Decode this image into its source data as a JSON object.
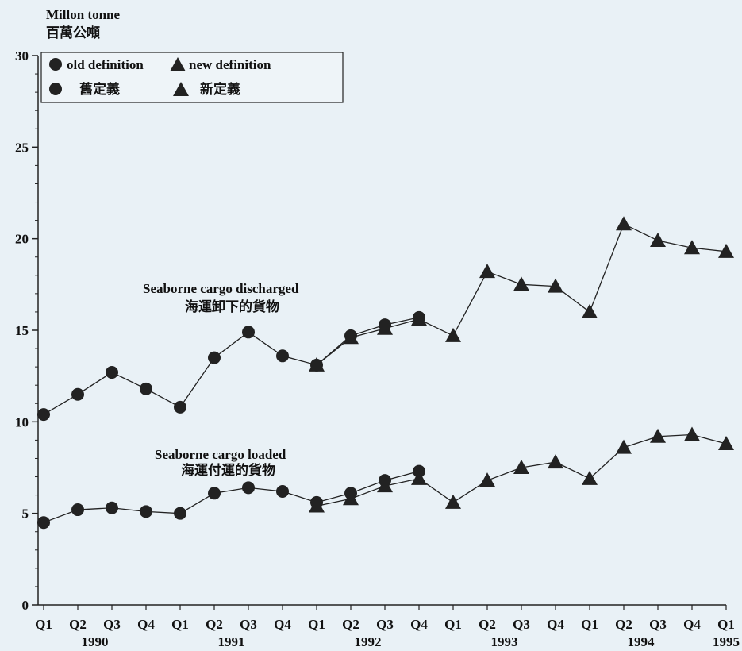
{
  "chart_data": {
    "type": "line",
    "ylabel": "Millon tonne",
    "ylabel_zh": "百萬公噸",
    "ylim": [
      0,
      30
    ],
    "yticks": [
      0,
      5,
      10,
      15,
      20,
      25,
      30
    ],
    "grid": false,
    "legend_position": "top-left",
    "legend": {
      "old": {
        "en": "old definition",
        "zh": "舊定義"
      },
      "new": {
        "en": "new definition",
        "zh": "新定義"
      }
    },
    "categories": [
      "Q1",
      "Q2",
      "Q3",
      "Q4",
      "Q1",
      "Q2",
      "Q3",
      "Q4",
      "Q1",
      "Q2",
      "Q3",
      "Q4",
      "Q1",
      "Q2",
      "Q3",
      "Q4",
      "Q1",
      "Q2",
      "Q3",
      "Q4",
      "Q1"
    ],
    "years": [
      {
        "label": "1990",
        "index": 1.5
      },
      {
        "label": "1991",
        "index": 5.5
      },
      {
        "label": "1992",
        "index": 9.5
      },
      {
        "label": "1993",
        "index": 13.5
      },
      {
        "label": "1994",
        "index": 17.5
      },
      {
        "label": "1995",
        "index": 20
      }
    ],
    "annotations": [
      {
        "en": "Seaborne cargo discharged",
        "zh": "海運卸下的貨物"
      },
      {
        "en": "Seaborne cargo loaded",
        "zh": "海運付運的貨物"
      }
    ],
    "series": [
      {
        "marker": "circle",
        "values": [
          10.4,
          11.5,
          12.7,
          11.8,
          10.8,
          13.5,
          14.9,
          13.6,
          13.1,
          14.7,
          15.3,
          15.7,
          null,
          null,
          null,
          null,
          null,
          null,
          null,
          null,
          null
        ]
      },
      {
        "marker": "triangle",
        "values": [
          null,
          null,
          null,
          null,
          null,
          null,
          null,
          null,
          13.1,
          14.6,
          15.1,
          15.6,
          14.7,
          18.2,
          17.5,
          17.4,
          16.0,
          20.8,
          19.9,
          19.5,
          19.3
        ]
      },
      {
        "marker": "circle",
        "values": [
          4.5,
          5.2,
          5.3,
          5.1,
          5.0,
          6.1,
          6.4,
          6.2,
          5.6,
          6.1,
          6.8,
          7.3,
          null,
          null,
          null,
          null,
          null,
          null,
          null,
          null,
          null
        ]
      },
      {
        "marker": "triangle",
        "values": [
          null,
          null,
          null,
          null,
          null,
          null,
          null,
          null,
          5.4,
          5.8,
          6.5,
          6.9,
          5.6,
          6.8,
          7.5,
          7.8,
          6.9,
          8.6,
          9.2,
          9.3,
          8.8
        ]
      }
    ]
  }
}
